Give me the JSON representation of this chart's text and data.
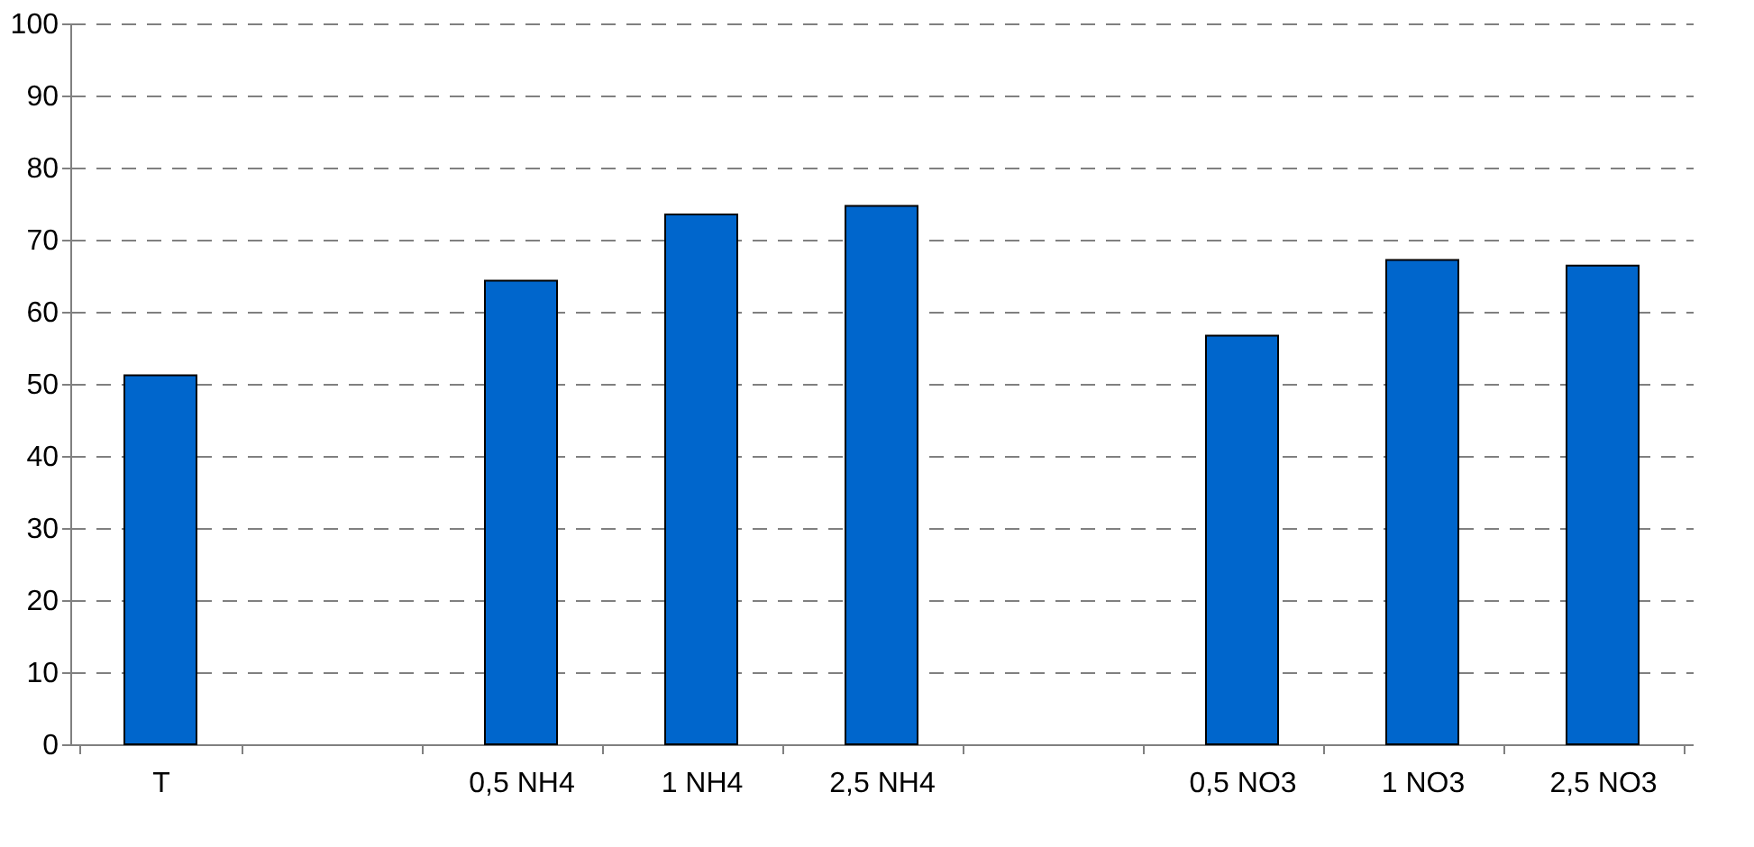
{
  "chart_data": {
    "type": "bar",
    "categories": [
      "T",
      null,
      "0,5 NH4",
      "1 NH4",
      "2,5 NH4",
      null,
      "0,5 NO3",
      "1 NO3",
      "2,5 NO3"
    ],
    "series": [
      {
        "color": "#0066cc",
        "values": [
          51.2,
          null,
          64.3,
          73.5,
          74.7,
          null,
          56.7,
          67.2,
          66.4
        ]
      }
    ],
    "ylim": [
      0,
      100
    ],
    "yticks": [
      0,
      10,
      20,
      30,
      40,
      50,
      60,
      70,
      80,
      90,
      100
    ],
    "grid": "y"
  }
}
